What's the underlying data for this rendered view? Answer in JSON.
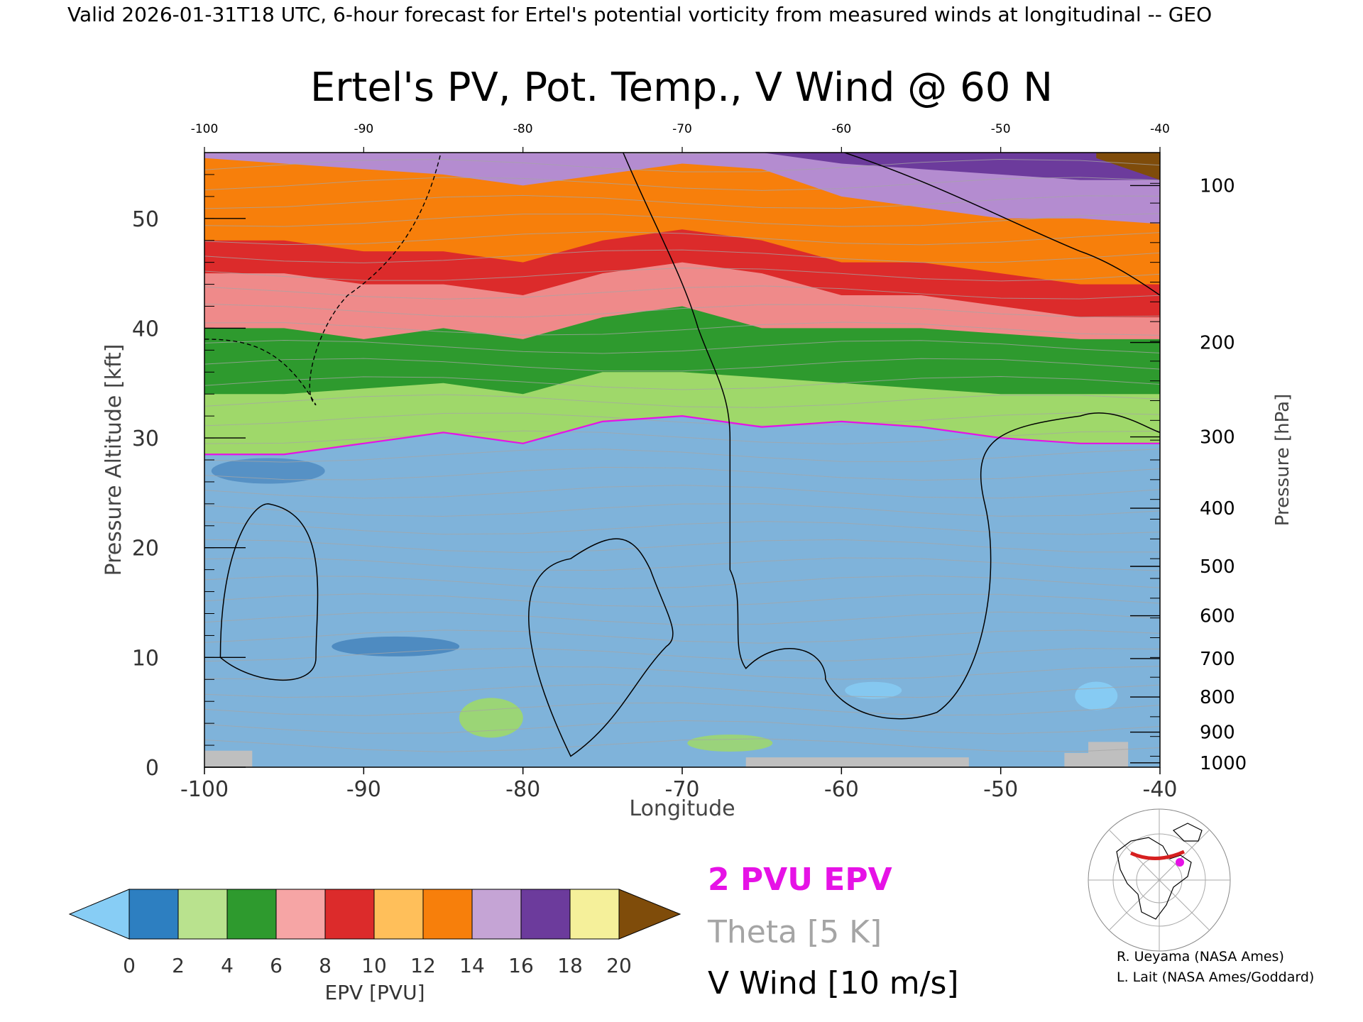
{
  "header": {
    "valid_line": "Valid 2026-01-31T18 UTC, 6-hour forecast for Ertel's potential vorticity from measured winds at longitudinal -- GEO"
  },
  "chart_data": {
    "type": "heatmap",
    "title": "Ertel's PV, Pot. Temp., V Wind @ 60 N",
    "xlabel": "Longitude",
    "ylabel_left": "Pressure Altitude [kft]",
    "ylabel_right": "Pressure [hPa]",
    "xlim": [
      -100,
      -40
    ],
    "ylim_kft": [
      0,
      56
    ],
    "x_ticks": [
      "-100",
      "-90",
      "-80",
      "-70",
      "-60",
      "-50",
      "-40"
    ],
    "top_x_ticks": [
      "-100",
      "-90",
      "-80",
      "-70",
      "-60",
      "-50",
      "-40"
    ],
    "left_y_ticks": [
      "0",
      "10",
      "20",
      "30",
      "40",
      "50"
    ],
    "pressure_ticks": [
      {
        "label": "100",
        "kft": 53.0
      },
      {
        "label": "200",
        "kft": 38.7
      },
      {
        "label": "300",
        "kft": 30.1
      },
      {
        "label": "400",
        "kft": 23.6
      },
      {
        "label": "500",
        "kft": 18.3
      },
      {
        "label": "600",
        "kft": 13.8
      },
      {
        "label": "700",
        "kft": 9.9
      },
      {
        "label": "800",
        "kft": 6.4
      },
      {
        "label": "900",
        "kft": 3.2
      },
      {
        "label": "1000",
        "kft": 0.4
      }
    ],
    "layers_pvu_along_x": {
      "x": [
        -100,
        -95,
        -90,
        -85,
        -80,
        -75,
        -70,
        -65,
        -60,
        -55,
        -50,
        -45,
        -40
      ],
      "tropopause_2pvu_kft": [
        28.5,
        28.5,
        29.5,
        30.5,
        29.5,
        31.5,
        32.0,
        31.0,
        31.5,
        31.0,
        30.0,
        29.5,
        29.5
      ],
      "pv6_kft": [
        34,
        34,
        34.5,
        35,
        34,
        36,
        36,
        35.5,
        35,
        34.5,
        34,
        34,
        34
      ],
      "pv8_kft": [
        40,
        40,
        39,
        40,
        39,
        41,
        42,
        40,
        40,
        40,
        39.5,
        39,
        39
      ],
      "pv12_kft": [
        48,
        48,
        47,
        47,
        46,
        48,
        49,
        48,
        46,
        46,
        45,
        44,
        44
      ],
      "pv14_kft": [
        55.5,
        55,
        54.5,
        54,
        53,
        54,
        55,
        54.5,
        52,
        51,
        50,
        50,
        49.5
      ],
      "pv18_kft": [
        57,
        57,
        57,
        57,
        57,
        57,
        57,
        56,
        55,
        54.5,
        54,
        53.5,
        53.5
      ]
    },
    "legend": {
      "ticks": [
        "0",
        "2",
        "4",
        "6",
        "8",
        "10",
        "12",
        "14",
        "16",
        "18",
        "20"
      ],
      "label": "EPV [PVU]",
      "colors": [
        "#2d7fc1",
        "#b9e28e",
        "#2e9a2e",
        "#f6a5a5",
        "#dc2b2b",
        "#ffbf5a",
        "#f77f0b",
        "#c5a4d5",
        "#6c3b9c",
        "#f5f09a"
      ],
      "under_color": "#87cdf5",
      "over_color": "#7f4c0a"
    },
    "keys": {
      "pvu_key": "2 PVU EPV",
      "theta_key": "Theta [5 K]",
      "wind_key": "V Wind [10 m/s]"
    },
    "colors": {
      "tropopause": "#e612e6",
      "theta_contour": "#a5a5a5",
      "wind_contour": "#000000",
      "surface": "#bfbfbf"
    }
  },
  "credits": {
    "line1": "R. Ueyama (NASA Ames)",
    "line2": "L. Lait (NASA Ames/Goddard)"
  }
}
